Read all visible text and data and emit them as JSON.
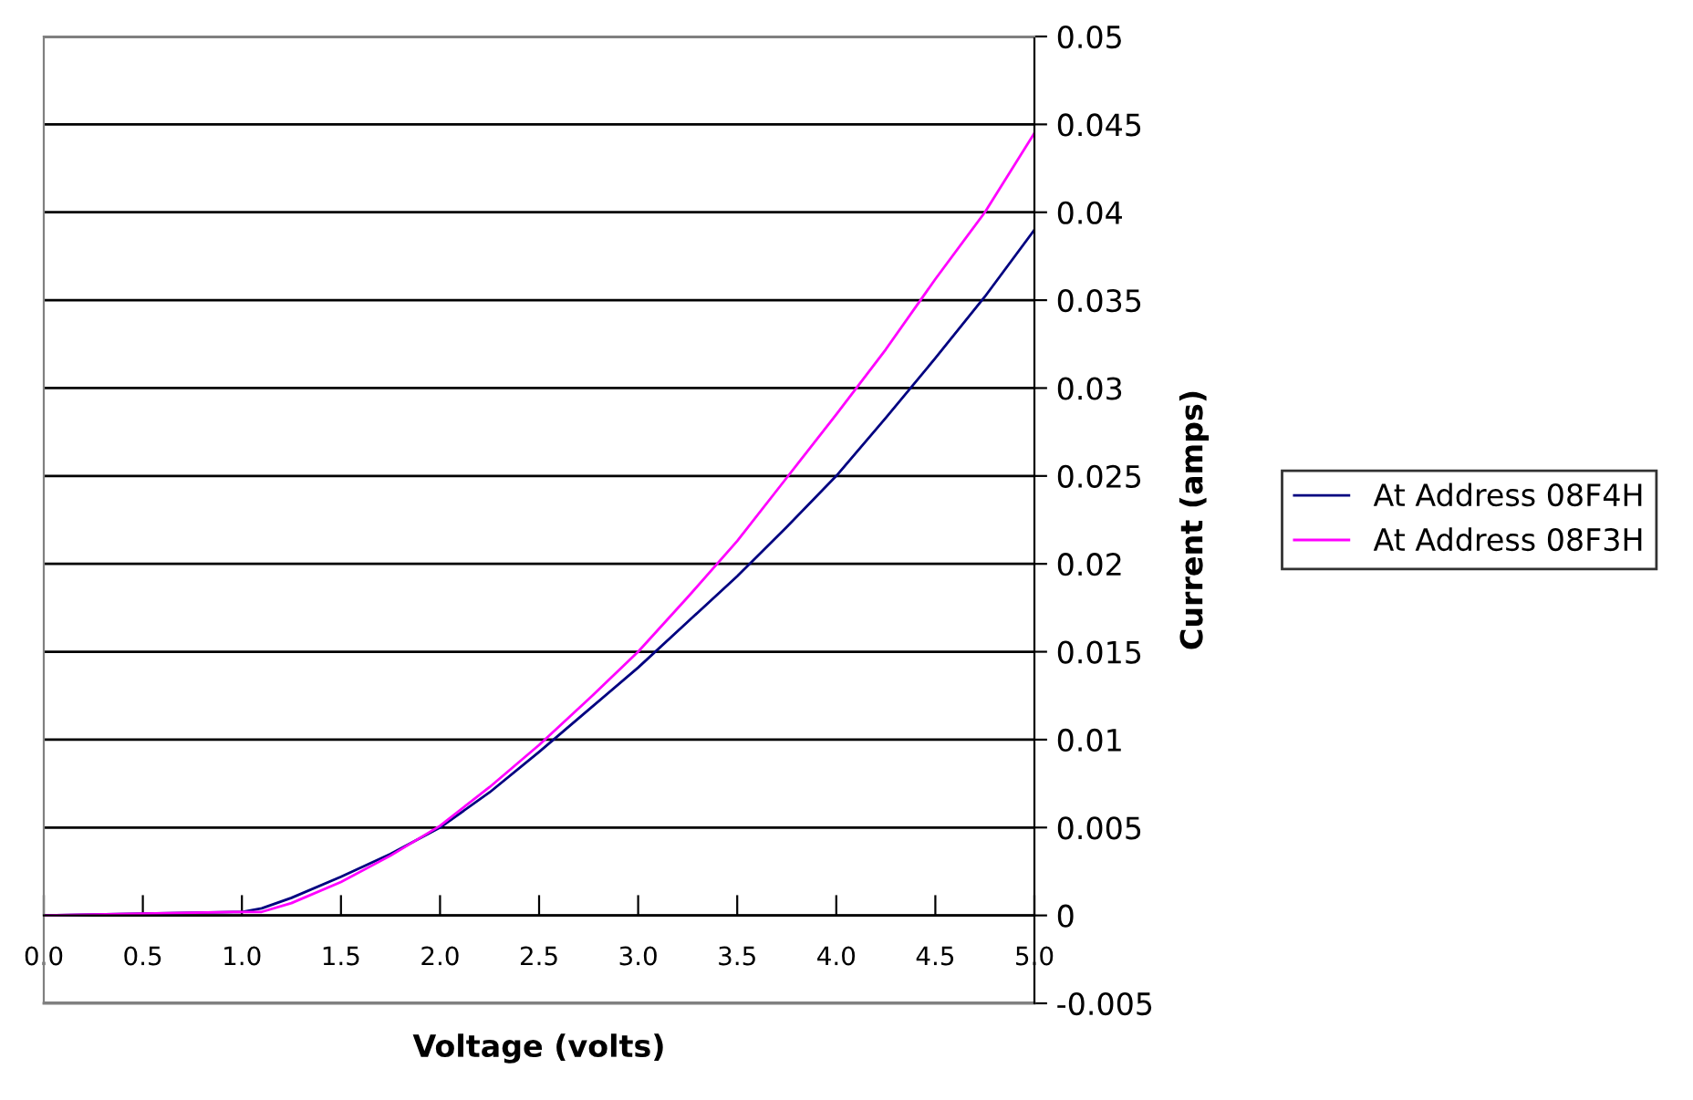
{
  "chart_data": {
    "type": "line",
    "xlabel": "Voltage (volts)",
    "ylabel": "Current (amps)",
    "x": [
      0,
      0.5,
      1.0,
      1.1,
      1.25,
      1.5,
      1.75,
      2.0,
      2.25,
      2.5,
      2.75,
      3.0,
      3.25,
      3.5,
      3.75,
      4.0,
      4.25,
      4.5,
      4.75,
      5.0
    ],
    "series": [
      {
        "name": "At Address 08F4H",
        "color": "#000080",
        "values": [
          0,
          0.0001,
          0.0002,
          0.0004,
          0.001,
          0.0022,
          0.0035,
          0.005,
          0.007,
          0.0093,
          0.0117,
          0.0141,
          0.0167,
          0.0193,
          0.0221,
          0.025,
          0.0283,
          0.0317,
          0.0352,
          0.039
        ]
      },
      {
        "name": "At Address 08F3H",
        "color": "#ff00ff",
        "values": [
          0,
          0.0001,
          0.0002,
          0.0002,
          0.0007,
          0.0019,
          0.0034,
          0.0051,
          0.0073,
          0.0097,
          0.0123,
          0.015,
          0.0181,
          0.0213,
          0.0249,
          0.0285,
          0.0322,
          0.0362,
          0.04,
          0.0445
        ]
      }
    ],
    "xlim": [
      0,
      5
    ],
    "ylim": [
      -0.005,
      0.05
    ],
    "xticks": [
      {
        "value": 0,
        "label": "0.0"
      },
      {
        "value": 0.5,
        "label": "0.5"
      },
      {
        "value": 1,
        "label": "1.0"
      },
      {
        "value": 1.5,
        "label": "1.5"
      },
      {
        "value": 2,
        "label": "2.0"
      },
      {
        "value": 2.5,
        "label": "2.5"
      },
      {
        "value": 3,
        "label": "3.0"
      },
      {
        "value": 3.5,
        "label": "3.5"
      },
      {
        "value": 4,
        "label": "4.0"
      },
      {
        "value": 4.5,
        "label": "4.5"
      },
      {
        "value": 5,
        "label": "5.0"
      }
    ],
    "yticks": [
      -0.005,
      0,
      0.005,
      0.01,
      0.015,
      0.02,
      0.025,
      0.03,
      0.035,
      0.04,
      0.045,
      0.05
    ],
    "grid": "y",
    "legend": "right",
    "marker": "none",
    "line_style": "solid"
  }
}
